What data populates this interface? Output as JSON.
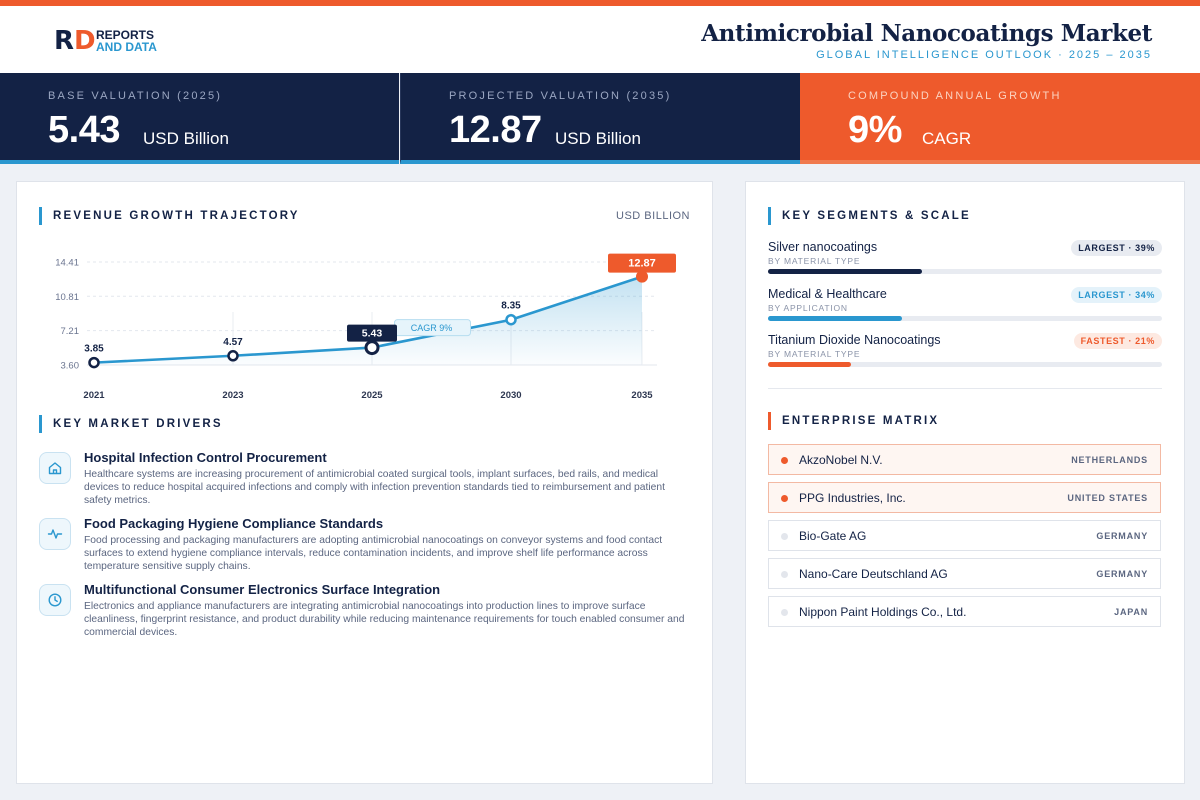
{
  "brand": {
    "line1": "REPORTS",
    "line2": "AND DATA",
    "mark_r": "R",
    "mark_d": "D"
  },
  "header": {
    "title": "Antimicrobial Nanocoatings Market",
    "subtitle": "GLOBAL INTELLIGENCE OUTLOOK  ·  2025 – 2035"
  },
  "kpis": [
    {
      "label": "BASE VALUATION (2025)",
      "value": "5.43",
      "unit": "USD Billion"
    },
    {
      "label": "PROJECTED VALUATION (2035)",
      "value": "12.87",
      "unit": "USD Billion"
    },
    {
      "label": "COMPOUND ANNUAL GROWTH",
      "value": "9%",
      "unit": "CAGR"
    }
  ],
  "revenue": {
    "title": "REVENUE GROWTH TRAJECTORY",
    "unit": "USD BILLION"
  },
  "chart_data": {
    "type": "area",
    "title": "REVENUE GROWTH TRAJECTORY",
    "ylabel": "USD BILLION",
    "categories": [
      "2021",
      "2023",
      "2025",
      "2030",
      "2035"
    ],
    "values": [
      3.85,
      4.57,
      5.43,
      8.35,
      12.87
    ],
    "data_labels": [
      "3.85",
      "4.57",
      "5.43",
      "8.35",
      "12.87"
    ],
    "yticks": [
      "14.41",
      "10.81",
      "7.21",
      "3.60"
    ],
    "ytick_values": [
      14.41,
      10.81,
      7.21,
      3.6
    ],
    "ylim": [
      3.6,
      14.41
    ],
    "annotation": "CAGR 9%",
    "grid": true,
    "colors": {
      "line": "#2a97cf",
      "highlight": "#132245",
      "end": "#ee5a2c"
    }
  },
  "drivers": {
    "title": "KEY MARKET DRIVERS",
    "items": [
      {
        "icon": "home-icon",
        "title": "Hospital Infection Control Procurement",
        "desc": "Healthcare systems are increasing procurement of antimicrobial coated surgical tools, implant surfaces, bed rails, and medical devices to reduce hospital acquired infections and comply with infection prevention standards tied to reimbursement and patient safety metrics."
      },
      {
        "icon": "pulse-icon",
        "title": "Food Packaging Hygiene Compliance Standards",
        "desc": "Food processing and packaging manufacturers are adopting antimicrobial nanocoatings on conveyor systems and food contact surfaces to extend hygiene compliance intervals, reduce contamination incidents, and improve shelf life performance across temperature sensitive supply chains."
      },
      {
        "icon": "clock-icon",
        "title": "Multifunctional Consumer Electronics Surface Integration",
        "desc": "Electronics and appliance manufacturers are integrating antimicrobial nanocoatings into production lines to improve surface cleanliness, fingerprint resistance, and product durability while reducing maintenance requirements for touch enabled consumer and commercial devices."
      }
    ]
  },
  "segments": {
    "title": "KEY SEGMENTS & SCALE",
    "items": [
      {
        "name": "Silver nanocoatings",
        "sub": "BY MATERIAL TYPE",
        "badge": "LARGEST · 39%",
        "share": 0.39,
        "color": "#132245",
        "badge_style": "dark"
      },
      {
        "name": "Medical & Healthcare",
        "sub": "BY APPLICATION",
        "badge": "LARGEST · 34%",
        "share": 0.34,
        "color": "#2a97cf",
        "badge_style": "blue"
      },
      {
        "name": "Titanium Dioxide Nanocoatings",
        "sub": "BY MATERIAL TYPE",
        "badge": "FASTEST · 21%",
        "share": 0.21,
        "color": "#ee5a2c",
        "badge_style": "orange"
      }
    ]
  },
  "enterprise": {
    "title": "ENTERPRISE MATRIX",
    "items": [
      {
        "name": "AkzoNobel N.V.",
        "country": "NETHERLANDS",
        "highlight": true
      },
      {
        "name": "PPG Industries, Inc.",
        "country": "UNITED STATES",
        "highlight": true
      },
      {
        "name": "Bio-Gate AG",
        "country": "GERMANY",
        "highlight": false
      },
      {
        "name": "Nano-Care Deutschland AG",
        "country": "GERMANY",
        "highlight": false
      },
      {
        "name": "Nippon Paint Holdings Co., Ltd.",
        "country": "JAPAN",
        "highlight": false
      }
    ]
  }
}
